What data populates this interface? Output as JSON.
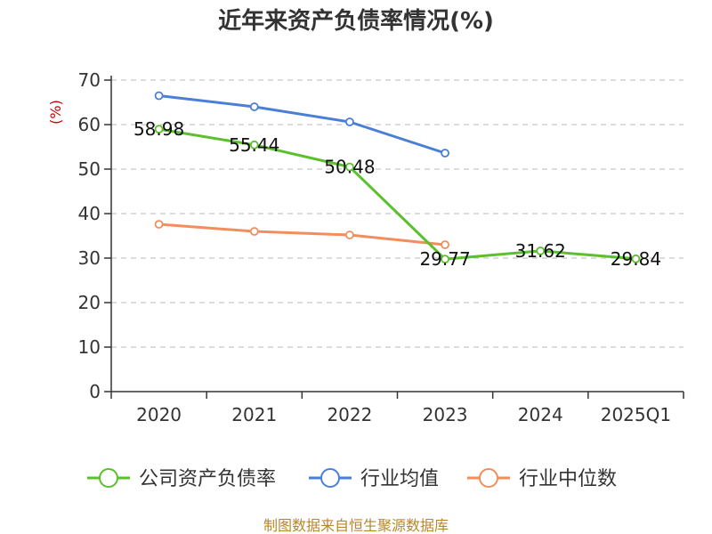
{
  "chart_data": {
    "type": "line",
    "title": "近年来资产负债率情况(%)",
    "ylabel": "(%)",
    "categories": [
      "2020",
      "2021",
      "2022",
      "2023",
      "2024",
      "2025Q1"
    ],
    "ylim": [
      0,
      70
    ],
    "yticks": [
      "0",
      "10",
      "20",
      "30",
      "40",
      "50",
      "60",
      "70"
    ],
    "grid": true,
    "legend_position": "bottom",
    "series": [
      {
        "name": "公司资产负债率",
        "color": "#5ac02b",
        "values": [
          58.98,
          55.44,
          50.48,
          29.77,
          31.62,
          29.84
        ],
        "labels": [
          "58.98",
          "55.44",
          "50.48",
          "29.77",
          "31.62",
          "29.84"
        ]
      },
      {
        "name": "行业均值",
        "color": "#4a7fd8",
        "values": [
          66.5,
          64.0,
          60.6,
          53.6,
          null,
          null
        ]
      },
      {
        "name": "行业中位数",
        "color": "#f28e5c",
        "values": [
          37.6,
          36.0,
          35.2,
          33.0,
          null,
          null
        ]
      }
    ],
    "source": "制图数据来自恒生聚源数据库"
  }
}
